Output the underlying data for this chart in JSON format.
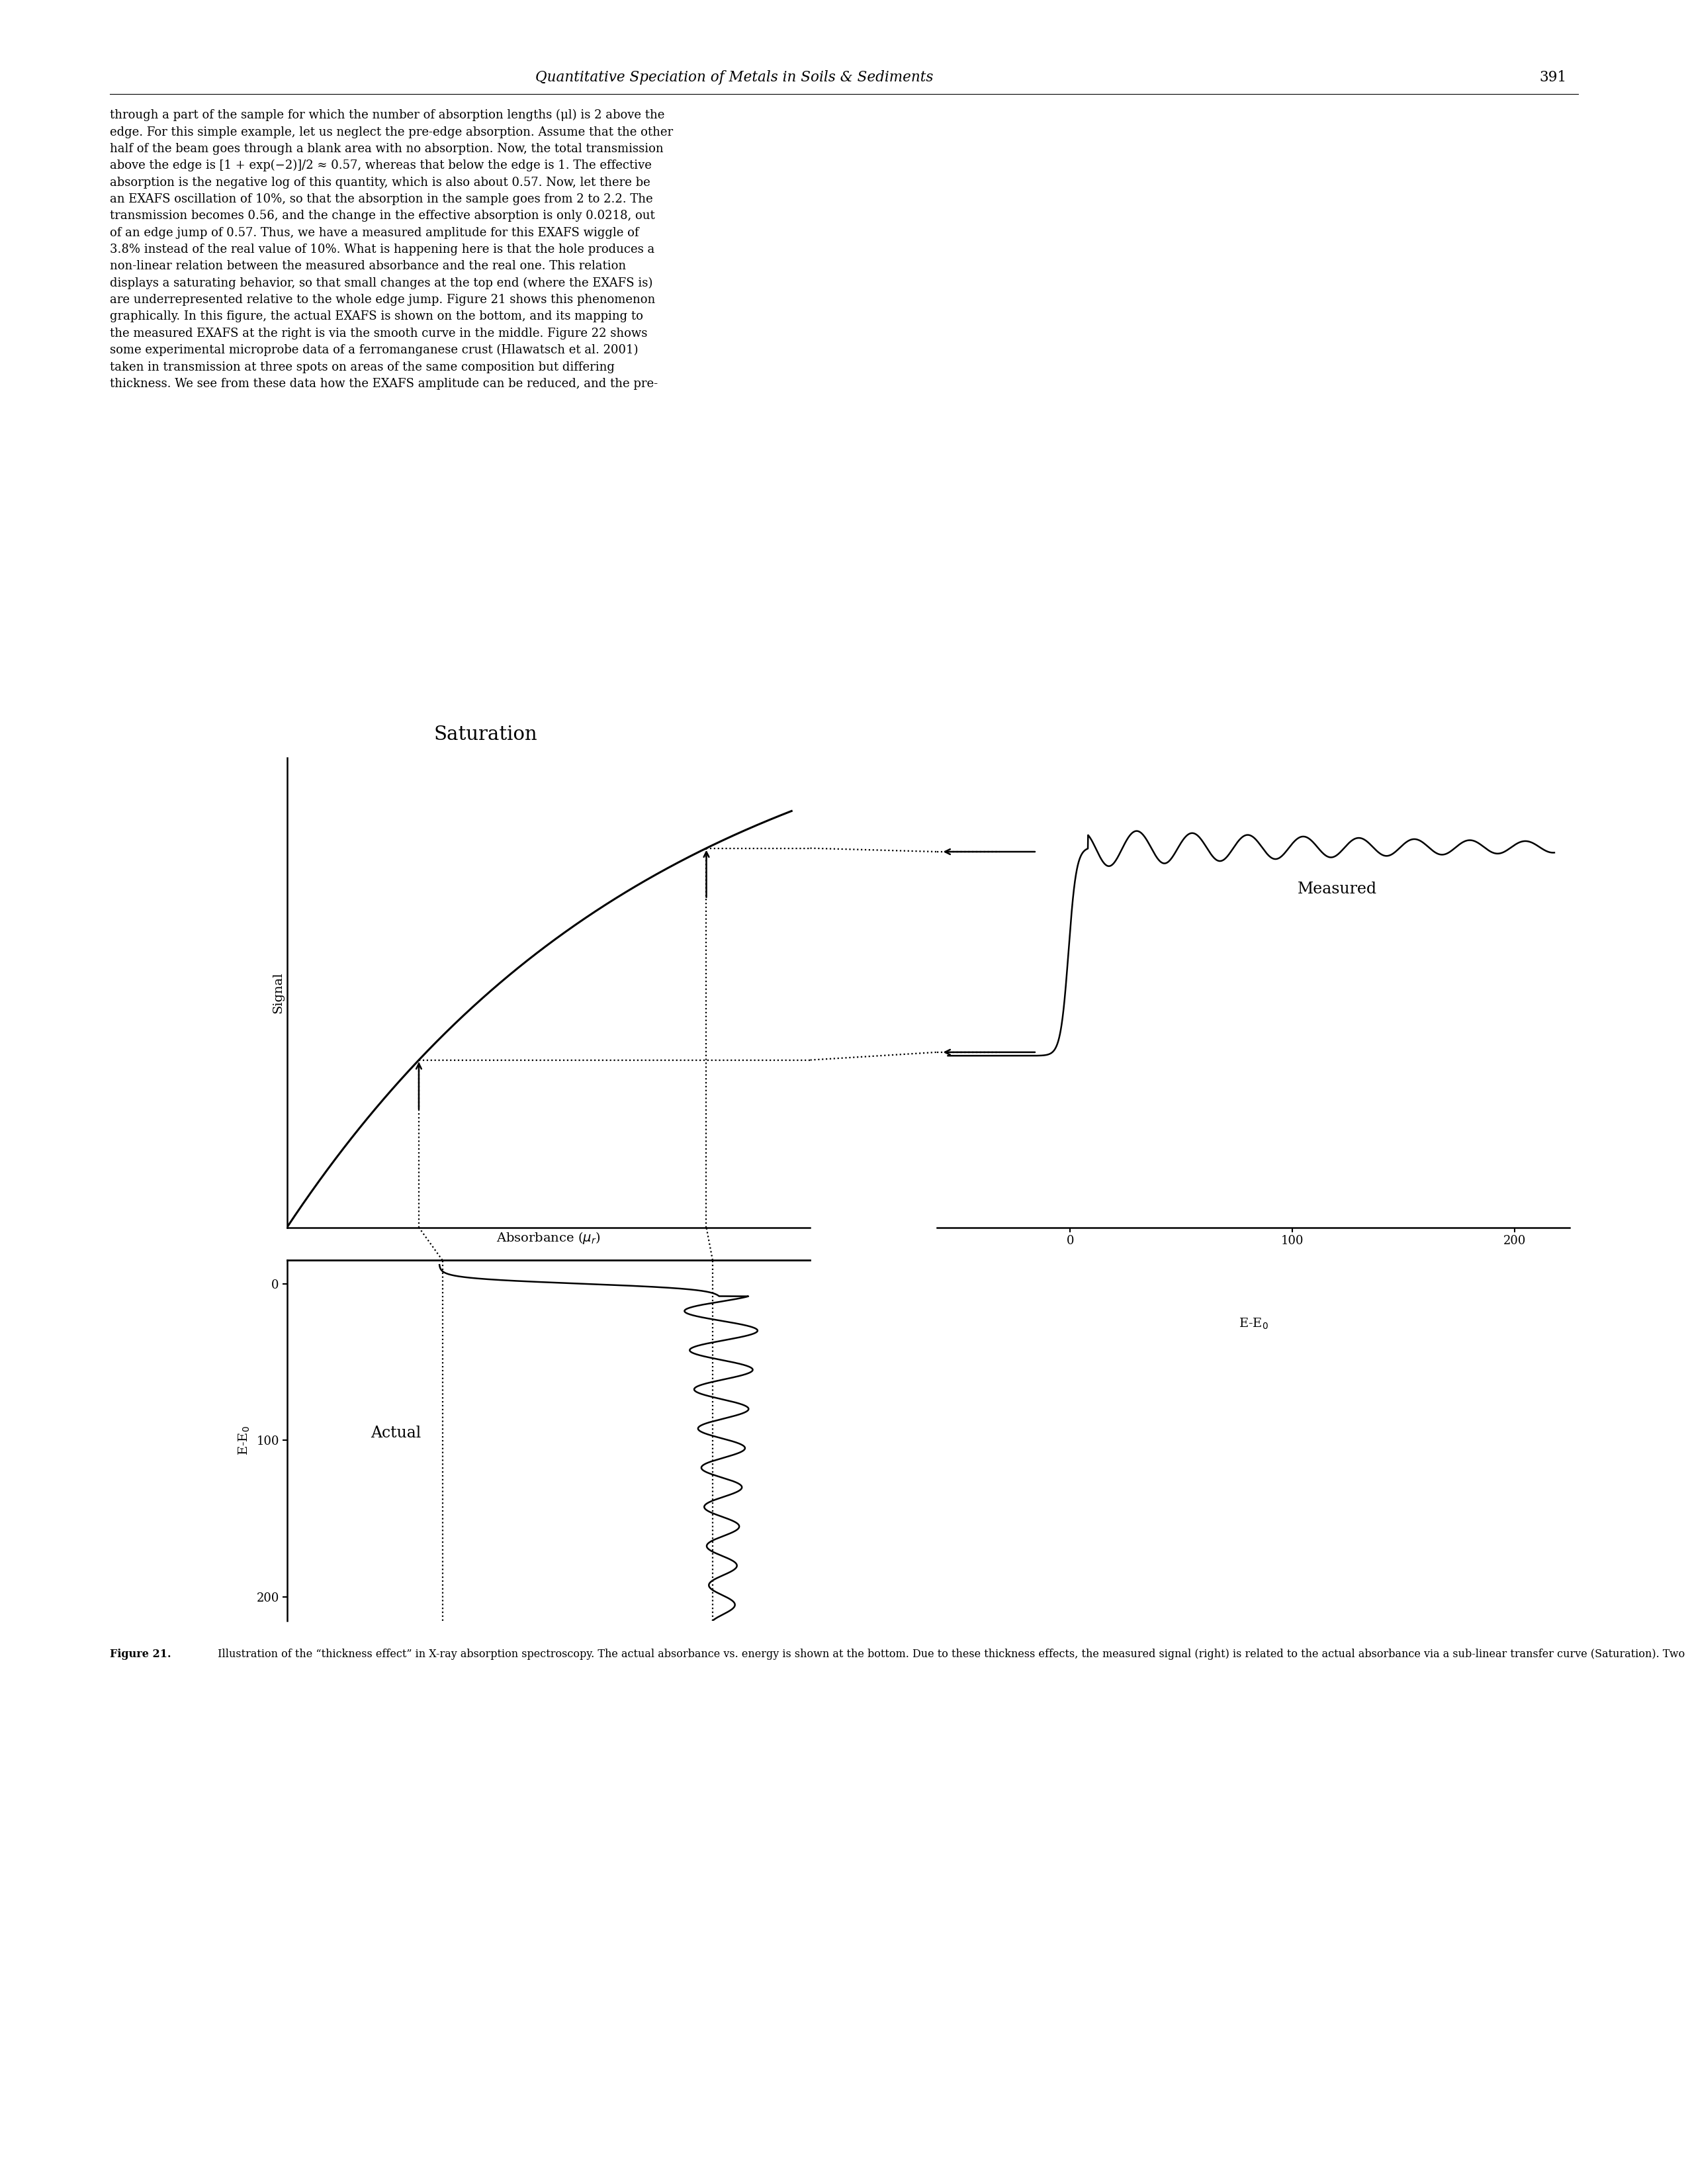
{
  "page_title": "Quantitative Speciation of Metals in Soils & Sediments",
  "page_number": "391",
  "body_lines": [
    "through a part of the sample for which the number of absorption lengths (μl) is 2 above the",
    "edge. For this simple example, let us neglect the pre-edge absorption. Assume that the other",
    "half of the beam goes through a blank area with no absorption. Now, the total transmission",
    "above the edge is [1 + exp(−2)]/2 ≈ 0.57, whereas that below the edge is 1. The effective",
    "absorption is the negative log of this quantity, which is also about 0.57. Now, let there be",
    "an EXAFS oscillation of 10%, so that the absorption in the sample goes from 2 to 2.2. The",
    "transmission becomes 0.56, and the change in the effective absorption is only 0.0218, out",
    "of an edge jump of 0.57. Thus, we have a measured amplitude for this EXAFS wiggle of",
    "3.8% instead of the real value of 10%. What is happening here is that the hole produces a",
    "non-linear relation between the measured absorbance and the real one. This relation",
    "displays a saturating behavior, so that small changes at the top end (where the EXAFS is)",
    "are underrepresented relative to the whole edge jump. Figure 21 shows this phenomenon",
    "graphically. In this figure, the actual EXAFS is shown on the bottom, and its mapping to",
    "the measured EXAFS at the right is via the smooth curve in the middle. Figure 22 shows",
    "some experimental microprobe data of a ferromanganese crust (Hlawatsch et al. 2001)",
    "taken in transmission at three spots on areas of the same composition but differing",
    "thickness. We see from these data how the EXAFS amplitude can be reduced, and the pre-"
  ],
  "caption_bold": "Figure 21.",
  "caption_rest": " Illustration of the “thickness effect” in X-ray absorption spectroscopy. The actual absorbance vs. energy is shown at the bottom. Due to these thickness effects, the measured signal (right) is related to the actual absorbance via a sub-linear transfer curve (Saturation). Two specific points along the curves are picked out with dotted lines and arrows, showing how the pre-edge features are raised relative to the edge. Notice also that the EXAFS amplitude in the Measured curve is reduced compared to its actual value. The Actual curve is transmission data for a Ti foil and the Measured curve is the fluorescence data for the same sample (6 μm, 45° incidence and exit angle). The Saturation curve comes from a fit between the Actual and Measured curves.",
  "bg_color": "#ffffff"
}
